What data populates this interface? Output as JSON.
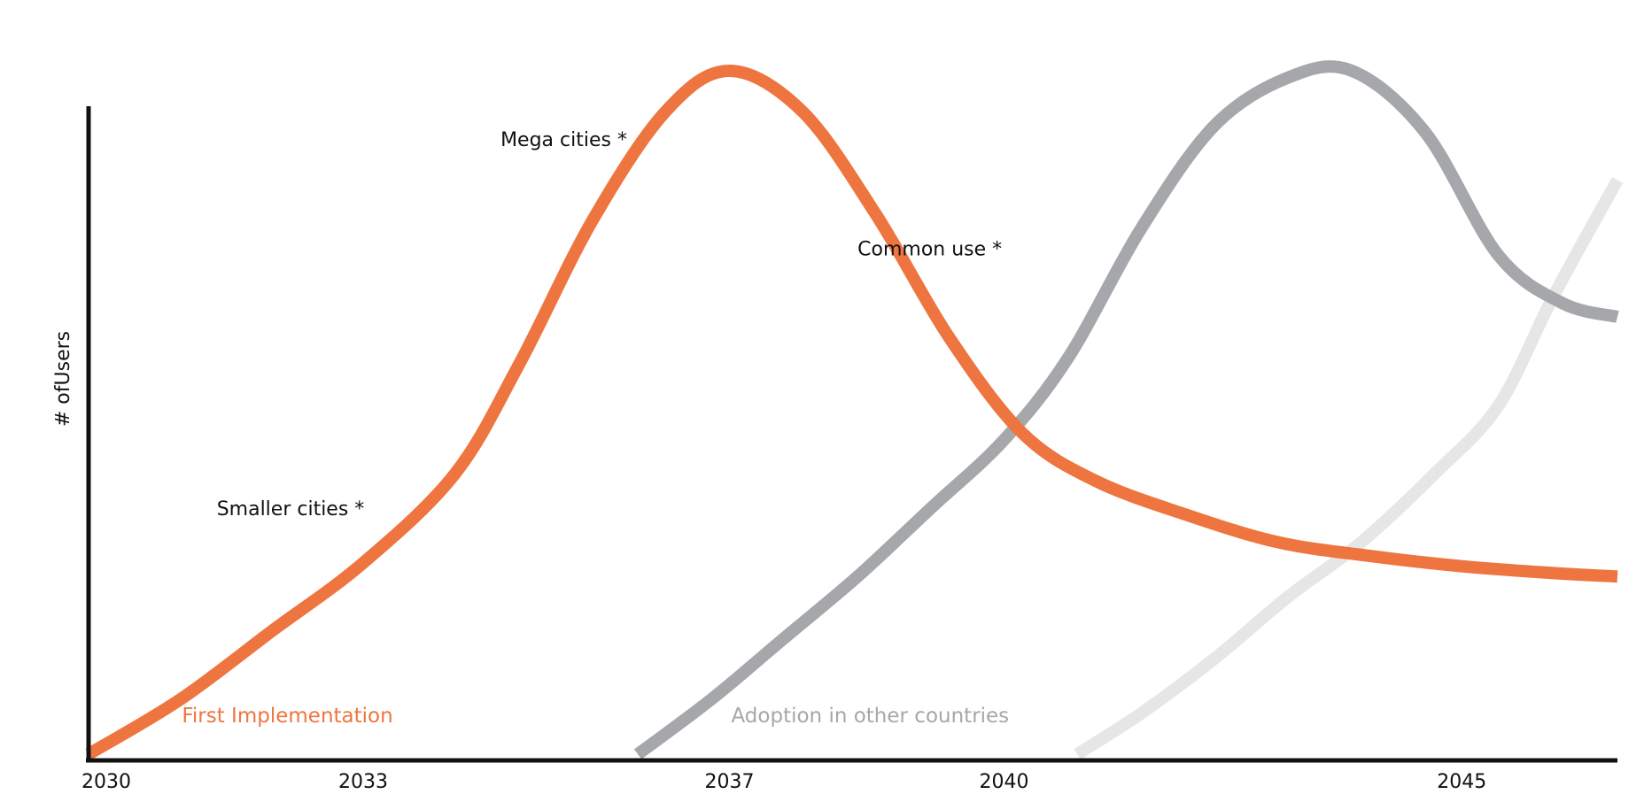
{
  "chart_data": {
    "type": "line",
    "title": "",
    "xlabel": "",
    "ylabel": "# ofUsers",
    "x_ticks": [
      {
        "label": "2030",
        "value": 2030
      },
      {
        "label": "2033",
        "value": 2033
      },
      {
        "label": "2037",
        "value": 2037
      },
      {
        "label": "2040",
        "value": 2040
      },
      {
        "label": "2045",
        "value": 2045
      }
    ],
    "xlim": [
      2030,
      2046.7
    ],
    "ylim": [
      0,
      100
    ],
    "y_ticks_shown": false,
    "grid": false,
    "legend": "none",
    "series": [
      {
        "color": "#ee7540",
        "x": [
          2030,
          2031,
          2032,
          2033,
          2034,
          2034.7,
          2035.5,
          2036.3,
          2037,
          2037.8,
          2038.6,
          2039.4,
          2040.2,
          2041,
          2042,
          2043,
          2044,
          2045,
          2046,
          2046.7
        ],
        "y": [
          0,
          8,
          18,
          28,
          41,
          57,
          78,
          94,
          100,
          94,
          79,
          61,
          47,
          40,
          35,
          31,
          29,
          27.5,
          26.5,
          26
        ]
      },
      {
        "color": "#a6a7aa",
        "x": [
          2036,
          2036.8,
          2037.6,
          2038.4,
          2039.2,
          2040,
          2040.7,
          2041.5,
          2042.3,
          2043.1,
          2043.8,
          2044.6,
          2045.4,
          2046.1,
          2046.7
        ],
        "y": [
          0,
          8,
          17,
          26,
          36,
          46,
          58,
          77,
          92,
          99,
          100,
          91,
          73,
          66,
          64
        ]
      },
      {
        "color": "#e6e6e6",
        "x": [
          2040.8,
          2041.5,
          2042.3,
          2043.1,
          2043.9,
          2044.7,
          2045.4,
          2046,
          2046.7
        ],
        "y": [
          0,
          6,
          14,
          23,
          31,
          41,
          51,
          67,
          84
        ]
      }
    ],
    "annotations": [
      {
        "text": "Smaller cities *",
        "x": 2031.4,
        "y": 36
      },
      {
        "text": "Mega cities *",
        "x": 2034.5,
        "y": 90
      },
      {
        "text": "Common use *",
        "x": 2038.4,
        "y": 74
      }
    ],
    "phase_labels": [
      {
        "text": "First Implementation",
        "x": 2031,
        "color": "#ee7540"
      },
      {
        "text": "Adoption in other countries",
        "x": 2037,
        "color": "#a6a7aa"
      }
    ]
  }
}
